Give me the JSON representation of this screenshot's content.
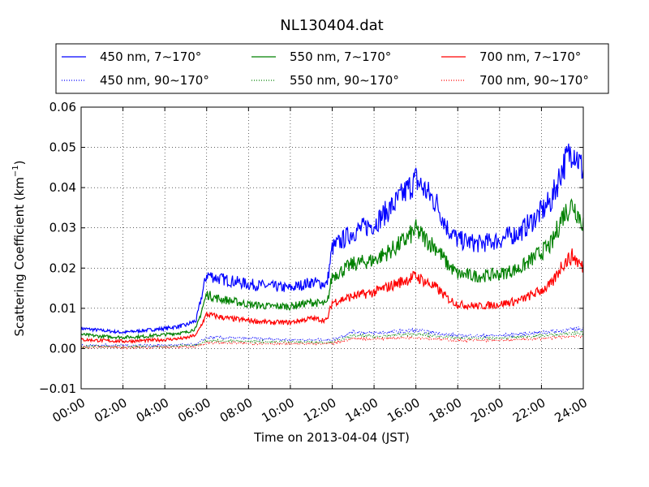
{
  "chart_data": {
    "type": "line",
    "title": "NL130404.dat",
    "xlabel": "Time on 2013-04-04 (JST)",
    "ylabel_main": "Scattering Coefficient (km",
    "ylabel_sup": "−1",
    "ylabel_end": ")",
    "xlim": [
      "00:00",
      "24:00"
    ],
    "ylim": [
      -0.01,
      0.06
    ],
    "xticks": [
      "00:00",
      "02:00",
      "04:00",
      "06:00",
      "08:00",
      "10:00",
      "12:00",
      "14:00",
      "16:00",
      "18:00",
      "20:00",
      "22:00",
      "24:00"
    ],
    "yticks": [
      "−0.01",
      "0.00",
      "0.01",
      "0.02",
      "0.03",
      "0.04",
      "0.05",
      "0.06"
    ],
    "grid": true,
    "legend_position": "top, above plot (3 columns)",
    "series": [
      {
        "name": "450 nm, 7∼170°",
        "color": "#0000ff",
        "style": "solid",
        "x": [
          "00:00",
          "01:00",
          "02:00",
          "03:00",
          "04:00",
          "05:00",
          "05:30",
          "06:00",
          "06:30",
          "07:00",
          "08:00",
          "09:00",
          "10:00",
          "11:00",
          "11:45",
          "12:00",
          "13:00",
          "14:00",
          "15:00",
          "15:30",
          "16:00",
          "16:30",
          "17:00",
          "17:30",
          "18:00",
          "19:00",
          "20:00",
          "21:00",
          "22:00",
          "22:30",
          "23:00",
          "23:30",
          "24:00"
        ],
        "y": [
          0.005,
          0.0045,
          0.004,
          0.0045,
          0.005,
          0.0058,
          0.007,
          0.0185,
          0.0175,
          0.017,
          0.016,
          0.0155,
          0.015,
          0.0165,
          0.016,
          0.025,
          0.029,
          0.031,
          0.036,
          0.039,
          0.042,
          0.039,
          0.036,
          0.03,
          0.027,
          0.026,
          0.027,
          0.029,
          0.034,
          0.037,
          0.045,
          0.05,
          0.044
        ]
      },
      {
        "name": "550 nm, 7∼170°",
        "color": "#008000",
        "style": "solid",
        "x": [
          "00:00",
          "01:00",
          "02:00",
          "03:00",
          "04:00",
          "05:00",
          "05:30",
          "06:00",
          "06:30",
          "07:00",
          "08:00",
          "09:00",
          "10:00",
          "11:00",
          "11:45",
          "12:00",
          "13:00",
          "14:00",
          "15:00",
          "15:30",
          "16:00",
          "16:30",
          "17:00",
          "17:30",
          "18:00",
          "19:00",
          "20:00",
          "21:00",
          "22:00",
          "22:30",
          "23:00",
          "23:30",
          "24:00"
        ],
        "y": [
          0.0035,
          0.003,
          0.0028,
          0.003,
          0.0035,
          0.004,
          0.005,
          0.0135,
          0.0125,
          0.012,
          0.011,
          0.0105,
          0.0105,
          0.0115,
          0.011,
          0.018,
          0.021,
          0.022,
          0.025,
          0.027,
          0.0295,
          0.027,
          0.025,
          0.021,
          0.0185,
          0.018,
          0.0185,
          0.02,
          0.024,
          0.026,
          0.033,
          0.036,
          0.031
        ]
      },
      {
        "name": "700 nm, 7∼170°",
        "color": "#ff0000",
        "style": "solid",
        "x": [
          "00:00",
          "01:00",
          "02:00",
          "03:00",
          "04:00",
          "05:00",
          "05:30",
          "06:00",
          "06:30",
          "07:00",
          "08:00",
          "09:00",
          "10:00",
          "11:00",
          "11:45",
          "12:00",
          "13:00",
          "14:00",
          "15:00",
          "15:30",
          "16:00",
          "16:30",
          "17:00",
          "17:30",
          "18:00",
          "19:00",
          "20:00",
          "21:00",
          "22:00",
          "22:30",
          "23:00",
          "23:30",
          "24:00"
        ],
        "y": [
          0.0022,
          0.002,
          0.0018,
          0.002,
          0.0022,
          0.0026,
          0.0034,
          0.0085,
          0.008,
          0.0075,
          0.007,
          0.0065,
          0.0065,
          0.0075,
          0.007,
          0.0115,
          0.013,
          0.014,
          0.016,
          0.017,
          0.018,
          0.0165,
          0.015,
          0.0125,
          0.011,
          0.0105,
          0.011,
          0.012,
          0.0145,
          0.016,
          0.021,
          0.023,
          0.02
        ]
      },
      {
        "name": "450 nm, 90∼170°",
        "color": "#0000ff",
        "style": "dotted",
        "x": [
          "00:00",
          "02:00",
          "04:00",
          "05:30",
          "06:00",
          "08:00",
          "10:00",
          "12:00",
          "13:00",
          "14:00",
          "16:00",
          "18:00",
          "20:00",
          "22:00",
          "24:00"
        ],
        "y": [
          0.0008,
          0.0008,
          0.0008,
          0.001,
          0.0028,
          0.0025,
          0.0022,
          0.0022,
          0.0042,
          0.0038,
          0.0045,
          0.0032,
          0.0032,
          0.004,
          0.005
        ]
      },
      {
        "name": "550 nm, 90∼170°",
        "color": "#008000",
        "style": "dotted",
        "x": [
          "00:00",
          "02:00",
          "04:00",
          "05:30",
          "06:00",
          "08:00",
          "10:00",
          "12:00",
          "13:00",
          "14:00",
          "16:00",
          "18:00",
          "20:00",
          "22:00",
          "24:00"
        ],
        "y": [
          0.0005,
          0.0005,
          0.0005,
          0.0008,
          0.002,
          0.0018,
          0.0016,
          0.0016,
          0.0032,
          0.003,
          0.0036,
          0.0026,
          0.0026,
          0.0032,
          0.004
        ]
      },
      {
        "name": "700 nm, 90∼170°",
        "color": "#ff0000",
        "style": "dotted",
        "x": [
          "00:00",
          "02:00",
          "04:00",
          "05:30",
          "06:00",
          "08:00",
          "10:00",
          "12:00",
          "13:00",
          "14:00",
          "16:00",
          "18:00",
          "20:00",
          "22:00",
          "24:00"
        ],
        "y": [
          0.0003,
          0.0003,
          0.0003,
          0.0005,
          0.0015,
          0.0013,
          0.0012,
          0.0012,
          0.0025,
          0.0024,
          0.0028,
          0.002,
          0.002,
          0.0025,
          0.0032
        ]
      }
    ]
  }
}
